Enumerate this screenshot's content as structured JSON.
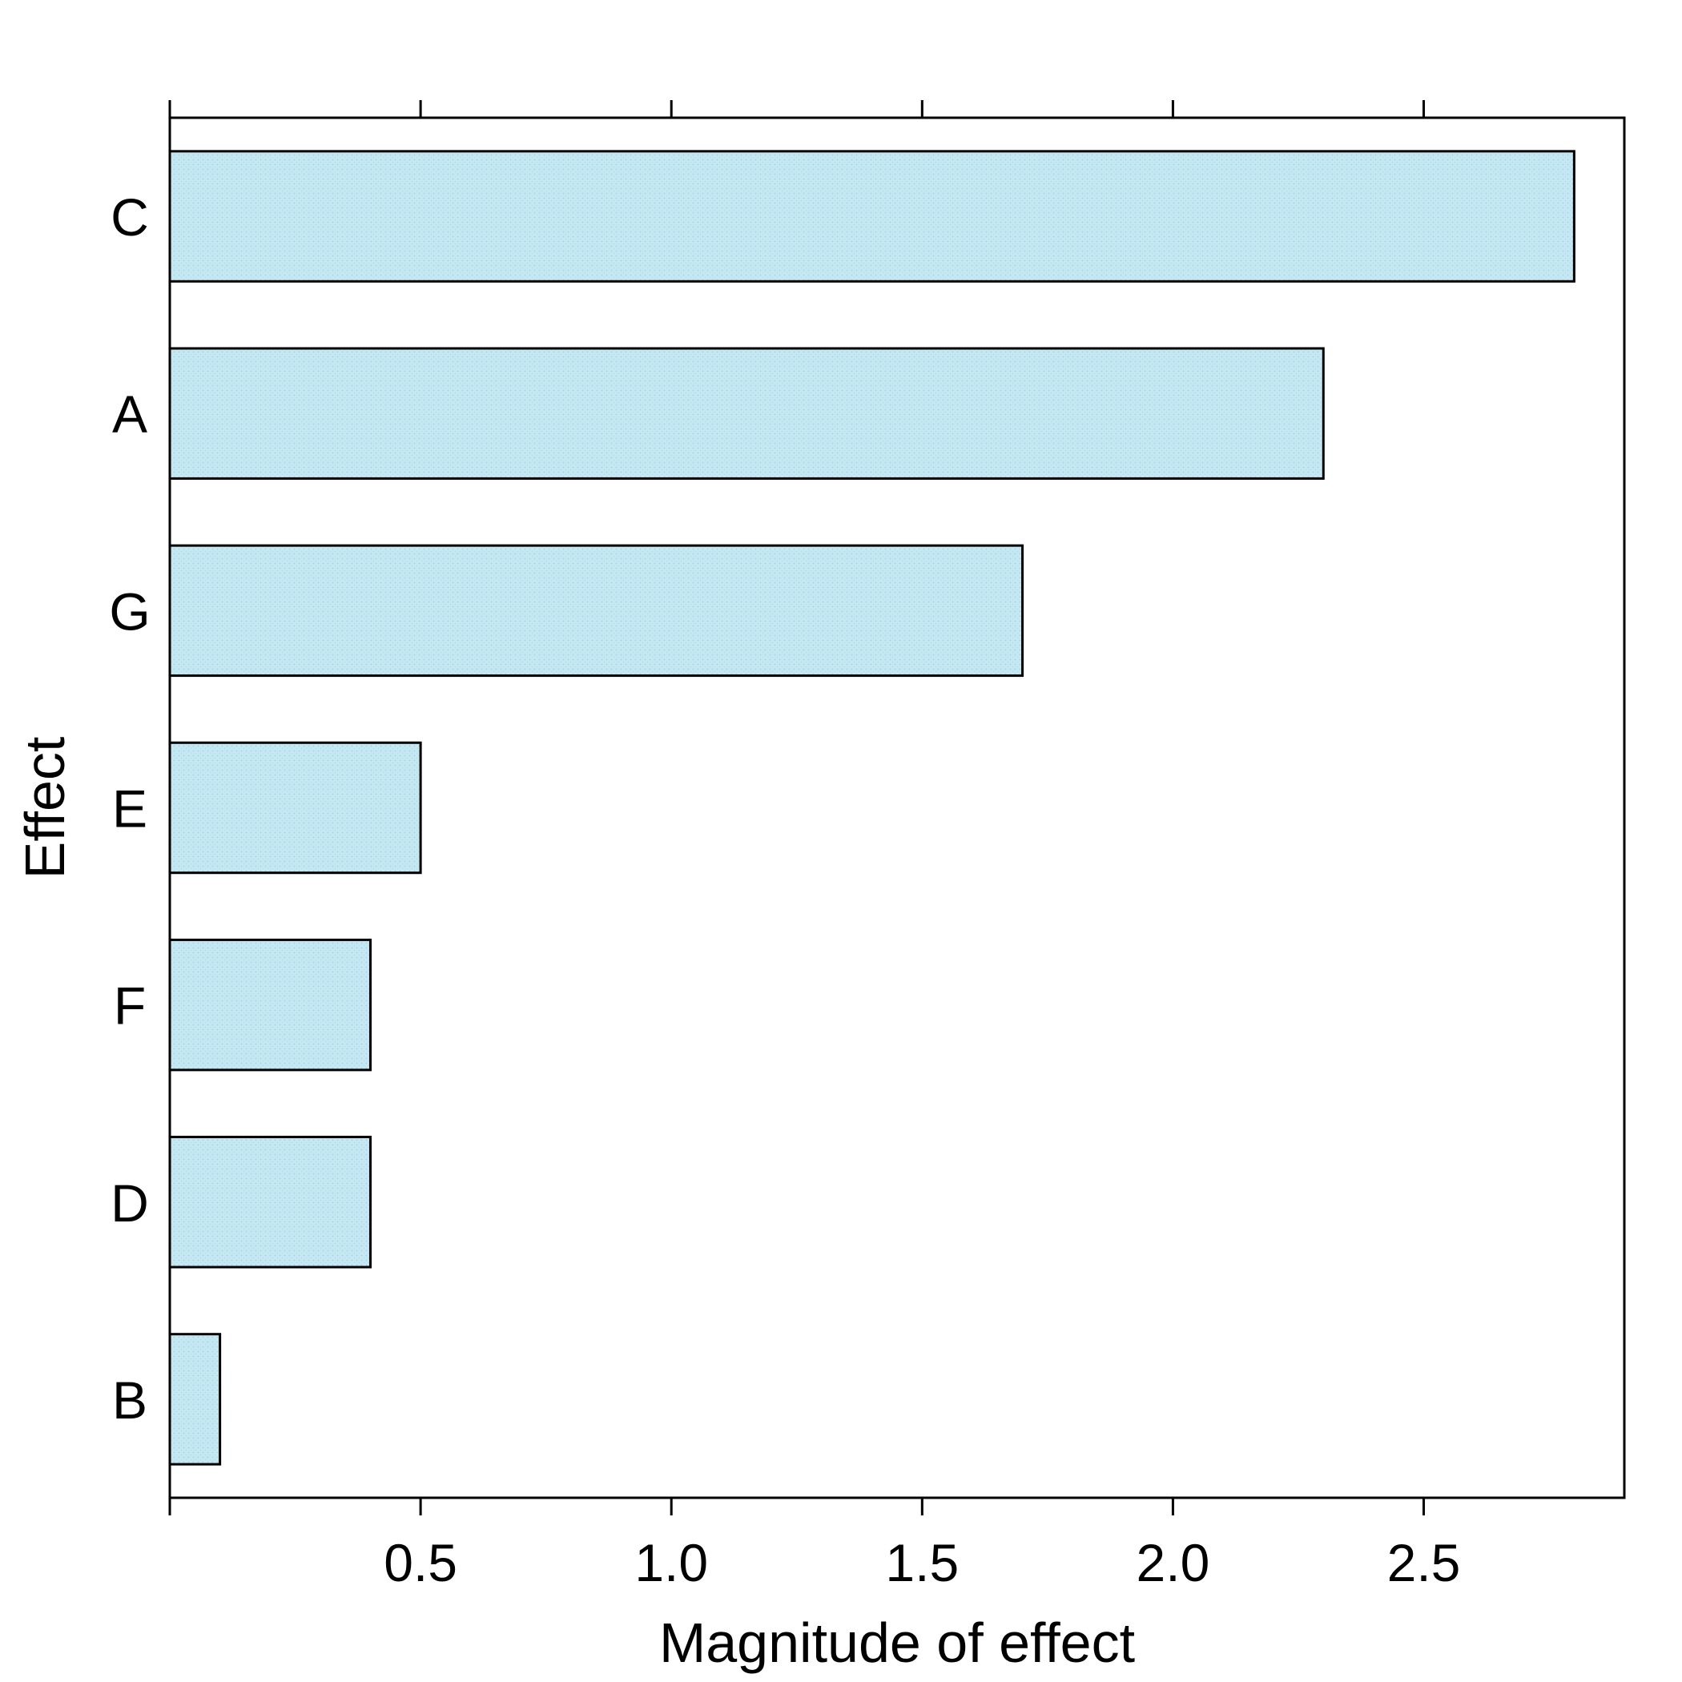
{
  "chart_data": {
    "type": "bar",
    "orientation": "horizontal",
    "categories": [
      "C",
      "A",
      "G",
      "E",
      "F",
      "D",
      "B"
    ],
    "values": [
      2.8,
      2.3,
      1.7,
      0.5,
      0.4,
      0.4,
      0.1
    ],
    "xlabel": "Magnitude of effect",
    "ylabel": "Effect",
    "xlim": [
      0,
      2.9
    ],
    "x_ticks": [
      0.5,
      1.0,
      1.5,
      2.0,
      2.5
    ],
    "x_tick_labels": [
      "0.5",
      "1.0",
      "1.5",
      "2.0",
      "2.5"
    ],
    "grid": false,
    "bar_fill_color": "#c6e8f2",
    "bar_edge_color": "#000000"
  }
}
